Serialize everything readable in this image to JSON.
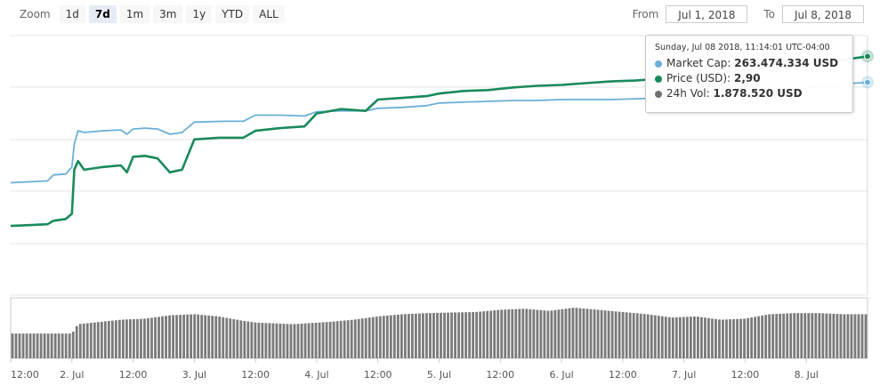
{
  "zoom": {
    "label": "Zoom",
    "buttons": [
      "1d",
      "7d",
      "1m",
      "3m",
      "1y",
      "YTD",
      "ALL"
    ],
    "active": "7d"
  },
  "range": {
    "from_label": "From",
    "from_value": "Jul 1, 2018",
    "to_label": "To",
    "to_value": "Jul 8, 2018"
  },
  "tooltip": {
    "timestamp": "Sunday, Jul 08 2018, 11:14:01 UTC-04:00",
    "rows": [
      {
        "label": "Market Cap:",
        "value": "263.474.334 USD",
        "color": "#6ab0d6"
      },
      {
        "label": "Price (USD):",
        "value": "2,90",
        "color": "#1a8a5c"
      },
      {
        "label": "24h Vol:",
        "value": "1.878.520 USD",
        "color": "#707070"
      }
    ]
  },
  "colors": {
    "market_cap": "#6ab0d6",
    "price": "#1a8a5c",
    "volume": "#888888",
    "grid": "#e6e6e6"
  },
  "chart_data": {
    "type": "line",
    "x_tick_labels": [
      "12:00",
      "2. Jul",
      "12:00",
      "3. Jul",
      "12:00",
      "4. Jul",
      "12:00",
      "5. Jul",
      "12:00",
      "6. Jul",
      "12:00",
      "7. Jul",
      "12:00",
      "8. Jul"
    ],
    "x_range_days": [
      0,
      7.0
    ],
    "x_tick_days": [
      0,
      0.5,
      1,
      1.5,
      2,
      2.5,
      3,
      3.5,
      4,
      4.5,
      5,
      5.5,
      6,
      6.5
    ],
    "series": [
      {
        "name": "Market Cap",
        "points": [
          [
            0,
            1.9
          ],
          [
            0.15,
            1.91
          ],
          [
            0.3,
            1.92
          ],
          [
            0.35,
            1.99
          ],
          [
            0.45,
            2.0
          ],
          [
            0.5,
            2.08
          ],
          [
            0.52,
            2.35
          ],
          [
            0.55,
            2.5
          ],
          [
            0.6,
            2.48
          ],
          [
            0.75,
            2.5
          ],
          [
            0.9,
            2.51
          ],
          [
            0.95,
            2.46
          ],
          [
            1.0,
            2.52
          ],
          [
            1.1,
            2.53
          ],
          [
            1.2,
            2.52
          ],
          [
            1.25,
            2.49
          ],
          [
            1.3,
            2.46
          ],
          [
            1.4,
            2.48
          ],
          [
            1.5,
            2.6
          ],
          [
            1.75,
            2.61
          ],
          [
            1.9,
            2.61
          ],
          [
            2.0,
            2.68
          ],
          [
            2.2,
            2.68
          ],
          [
            2.4,
            2.67
          ],
          [
            2.5,
            2.72
          ],
          [
            2.7,
            2.73
          ],
          [
            2.9,
            2.73
          ],
          [
            3.0,
            2.76
          ],
          [
            3.2,
            2.77
          ],
          [
            3.4,
            2.79
          ],
          [
            3.5,
            2.82
          ],
          [
            3.7,
            2.83
          ],
          [
            3.9,
            2.84
          ],
          [
            4.1,
            2.85
          ],
          [
            4.3,
            2.85
          ],
          [
            4.5,
            2.86
          ],
          [
            4.7,
            2.86
          ],
          [
            4.9,
            2.86
          ],
          [
            5.1,
            2.87
          ],
          [
            5.3,
            2.88
          ],
          [
            5.5,
            2.88
          ],
          [
            5.7,
            2.9
          ],
          [
            5.9,
            2.91
          ],
          [
            6.1,
            2.96
          ],
          [
            6.3,
            2.97
          ],
          [
            6.5,
            2.99
          ],
          [
            6.7,
            3.02
          ],
          [
            6.9,
            3.05
          ],
          [
            7.0,
            3.06
          ]
        ]
      },
      {
        "name": "Price (USD)",
        "points": [
          [
            0,
            1.4
          ],
          [
            0.15,
            1.41
          ],
          [
            0.3,
            1.42
          ],
          [
            0.35,
            1.46
          ],
          [
            0.45,
            1.48
          ],
          [
            0.5,
            1.54
          ],
          [
            0.52,
            2.05
          ],
          [
            0.55,
            2.15
          ],
          [
            0.6,
            2.05
          ],
          [
            0.75,
            2.08
          ],
          [
            0.9,
            2.1
          ],
          [
            0.95,
            2.02
          ],
          [
            1.0,
            2.2
          ],
          [
            1.1,
            2.21
          ],
          [
            1.2,
            2.18
          ],
          [
            1.25,
            2.1
          ],
          [
            1.3,
            2.02
          ],
          [
            1.4,
            2.05
          ],
          [
            1.5,
            2.4
          ],
          [
            1.7,
            2.42
          ],
          [
            1.9,
            2.42
          ],
          [
            2.0,
            2.5
          ],
          [
            2.2,
            2.53
          ],
          [
            2.4,
            2.55
          ],
          [
            2.5,
            2.7
          ],
          [
            2.7,
            2.75
          ],
          [
            2.9,
            2.73
          ],
          [
            3.0,
            2.86
          ],
          [
            3.2,
            2.88
          ],
          [
            3.4,
            2.9
          ],
          [
            3.5,
            2.93
          ],
          [
            3.7,
            2.96
          ],
          [
            3.9,
            2.97
          ],
          [
            4.1,
            3.0
          ],
          [
            4.3,
            3.02
          ],
          [
            4.5,
            3.03
          ],
          [
            4.7,
            3.05
          ],
          [
            4.9,
            3.07
          ],
          [
            5.1,
            3.08
          ],
          [
            5.3,
            3.1
          ],
          [
            5.5,
            3.12
          ],
          [
            5.7,
            3.15
          ],
          [
            5.9,
            3.18
          ],
          [
            6.1,
            3.22
          ],
          [
            6.3,
            3.24
          ],
          [
            6.5,
            3.27
          ],
          [
            6.7,
            3.3
          ],
          [
            6.9,
            3.34
          ],
          [
            7.0,
            3.36
          ]
        ]
      }
    ],
    "volume": {
      "name": "24h Vol",
      "segments": [
        [
          0,
          0.45
        ],
        [
          0.5,
          0.45
        ],
        [
          0.55,
          0.62
        ],
        [
          0.9,
          0.7
        ],
        [
          1.1,
          0.72
        ],
        [
          1.3,
          0.78
        ],
        [
          1.5,
          0.8
        ],
        [
          1.7,
          0.76
        ],
        [
          1.9,
          0.68
        ],
        [
          2.0,
          0.65
        ],
        [
          2.3,
          0.62
        ],
        [
          2.6,
          0.66
        ],
        [
          2.8,
          0.7
        ],
        [
          3.0,
          0.76
        ],
        [
          3.2,
          0.8
        ],
        [
          3.4,
          0.82
        ],
        [
          3.6,
          0.83
        ],
        [
          3.8,
          0.84
        ],
        [
          4.0,
          0.88
        ],
        [
          4.2,
          0.9
        ],
        [
          4.4,
          0.86
        ],
        [
          4.6,
          0.92
        ],
        [
          4.8,
          0.88
        ],
        [
          5.0,
          0.84
        ],
        [
          5.2,
          0.8
        ],
        [
          5.4,
          0.74
        ],
        [
          5.6,
          0.76
        ],
        [
          5.8,
          0.7
        ],
        [
          6.0,
          0.72
        ],
        [
          6.2,
          0.8
        ],
        [
          6.4,
          0.82
        ],
        [
          6.6,
          0.82
        ],
        [
          6.8,
          0.8
        ],
        [
          7.0,
          0.8
        ]
      ]
    }
  }
}
